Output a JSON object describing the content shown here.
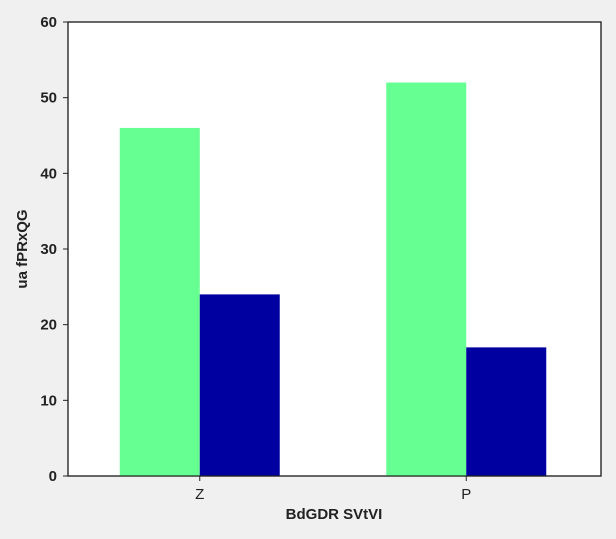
{
  "chart_data": {
    "type": "bar",
    "title": "",
    "xlabel": "BdGDR SVtVI",
    "ylabel": "ua  fPRxQG",
    "categories": [
      "Z",
      "P"
    ],
    "series": [
      {
        "values": [
          46,
          52
        ],
        "color": "#66ff92"
      },
      {
        "values": [
          24,
          17
        ],
        "color": "#0000a0"
      }
    ],
    "ylim": [
      0,
      60
    ],
    "yticks": [
      0,
      10,
      20,
      30,
      40,
      50,
      60
    ],
    "grid": false,
    "legend": "none",
    "colors": {
      "background": "#f0f0f0",
      "plot_background": "#ffffff",
      "axis": "#222222"
    }
  }
}
